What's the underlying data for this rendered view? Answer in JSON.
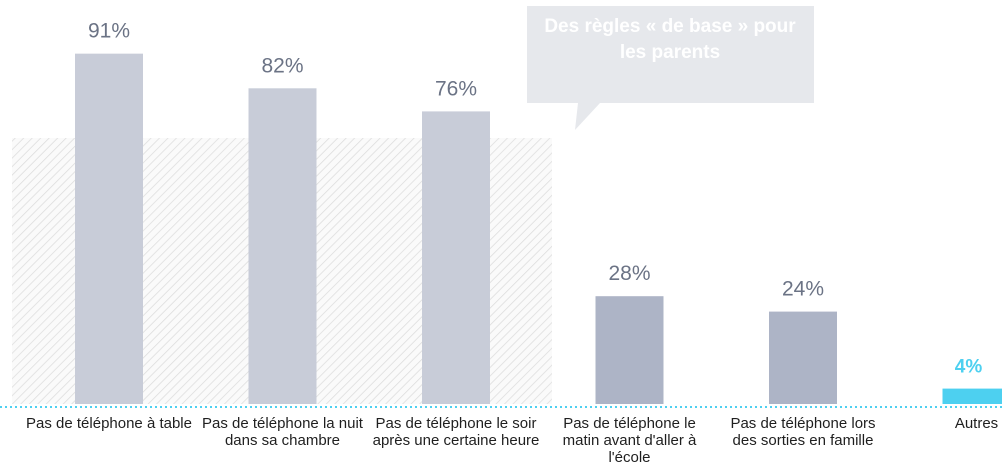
{
  "chart_data": {
    "type": "bar",
    "annotation": "Des règles « de base » pour les parents",
    "categories": [
      "Pas de téléphone à table",
      "Pas de téléphone la nuit dans sa chambre",
      "Pas de téléphone le soir après une certaine heure",
      "Pas de téléphone le matin avant d'aller à l'école",
      "Pas de téléphone lors des sorties en famille",
      "Autres"
    ],
    "values": [
      91,
      82,
      76,
      28,
      24,
      4
    ],
    "value_labels": [
      "91%",
      "82%",
      "76%",
      "28%",
      "24%",
      "4%"
    ],
    "colors": [
      "#c8ccd8",
      "#c8ccd8",
      "#c8ccd8",
      "#adb4c6",
      "#adb4c6",
      "#4dd0f0"
    ]
  }
}
